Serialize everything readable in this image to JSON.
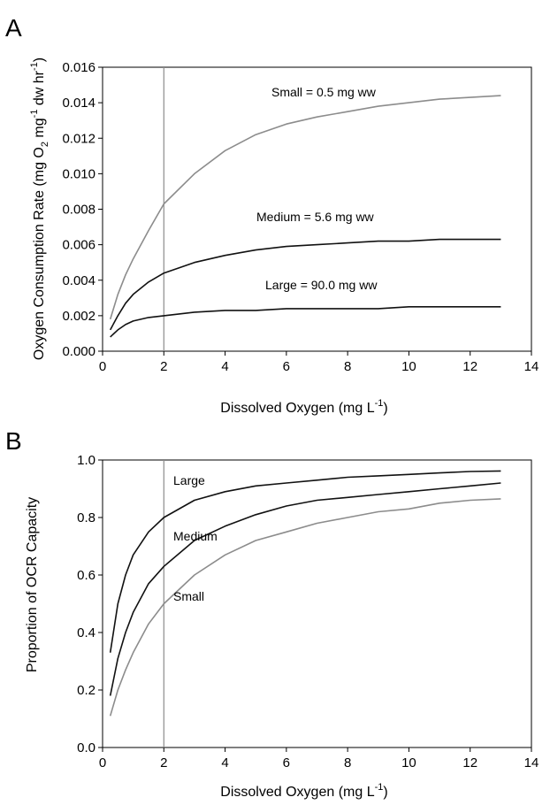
{
  "panels": [
    {
      "label": "A"
    },
    {
      "label": "B"
    }
  ],
  "chart_data": [
    {
      "type": "line",
      "panel": "A",
      "xlabel": "Dissolved Oxygen (mg L",
      "xlabel_sup": "-1",
      "xlabel_end": ")",
      "ylabel_parts": [
        "Oxygen Consumption Rate (mg O",
        "2",
        " mg",
        "-1",
        " dw hr",
        "-1",
        ")"
      ],
      "xlim": [
        0,
        14
      ],
      "ylim": [
        0,
        0.016
      ],
      "x_ticks": [
        0,
        2,
        4,
        6,
        8,
        10,
        12,
        14
      ],
      "y_ticks": [
        "0.000",
        "0.002",
        "0.004",
        "0.006",
        "0.008",
        "0.010",
        "0.012",
        "0.014",
        "0.016"
      ],
      "grid": false,
      "reference_line_x": 2,
      "series": [
        {
          "name": "Small = 0.5 mg ww",
          "color": "#8c8c8c",
          "x": [
            0.25,
            0.5,
            0.75,
            1,
            1.5,
            2,
            3,
            4,
            5,
            6,
            7,
            8,
            9,
            10,
            11,
            12,
            13
          ],
          "y": [
            0.0018,
            0.0032,
            0.0043,
            0.0052,
            0.0068,
            0.0083,
            0.01,
            0.0113,
            0.0122,
            0.0128,
            0.0132,
            0.0135,
            0.0138,
            0.014,
            0.0142,
            0.0143,
            0.0144
          ]
        },
        {
          "name": "Medium = 5.6 mg ww",
          "color": "#111111",
          "x": [
            0.25,
            0.5,
            0.75,
            1,
            1.5,
            2,
            3,
            4,
            5,
            6,
            7,
            8,
            9,
            10,
            11,
            12,
            13
          ],
          "y": [
            0.0012,
            0.002,
            0.0027,
            0.0032,
            0.0039,
            0.0044,
            0.005,
            0.0054,
            0.0057,
            0.0059,
            0.006,
            0.0061,
            0.0062,
            0.0062,
            0.0063,
            0.0063,
            0.0063
          ]
        },
        {
          "name": "Large = 90.0 mg ww",
          "color": "#111111",
          "x": [
            0.25,
            0.5,
            0.75,
            1,
            1.5,
            2,
            3,
            4,
            5,
            6,
            7,
            8,
            9,
            10,
            11,
            12,
            13
          ],
          "y": [
            0.0008,
            0.0012,
            0.0015,
            0.0017,
            0.0019,
            0.002,
            0.0022,
            0.0023,
            0.0023,
            0.0024,
            0.0024,
            0.0024,
            0.0024,
            0.0025,
            0.0025,
            0.0025,
            0.0025
          ]
        }
      ]
    },
    {
      "type": "line",
      "panel": "B",
      "xlabel": "Dissolved Oxygen (mg L",
      "xlabel_sup": "-1",
      "xlabel_end": ")",
      "ylabel": "Proportion of OCR Capacity",
      "xlim": [
        0,
        14
      ],
      "ylim": [
        0,
        1.0
      ],
      "x_ticks": [
        0,
        2,
        4,
        6,
        8,
        10,
        12,
        14
      ],
      "y_ticks": [
        "0.0",
        "0.2",
        "0.4",
        "0.6",
        "0.8",
        "1.0"
      ],
      "grid": false,
      "reference_line_x": 2,
      "series": [
        {
          "name": "Large",
          "color": "#111111",
          "x": [
            0.25,
            0.5,
            0.75,
            1,
            1.5,
            2,
            3,
            4,
            5,
            6,
            7,
            8,
            9,
            10,
            11,
            12,
            13
          ],
          "y": [
            0.33,
            0.5,
            0.6,
            0.67,
            0.75,
            0.8,
            0.86,
            0.89,
            0.91,
            0.92,
            0.93,
            0.94,
            0.945,
            0.95,
            0.955,
            0.96,
            0.962
          ]
        },
        {
          "name": "Medium",
          "color": "#111111",
          "x": [
            0.25,
            0.5,
            0.75,
            1,
            1.5,
            2,
            3,
            4,
            5,
            6,
            7,
            8,
            9,
            10,
            11,
            12,
            13
          ],
          "y": [
            0.18,
            0.31,
            0.4,
            0.47,
            0.57,
            0.63,
            0.72,
            0.77,
            0.81,
            0.84,
            0.86,
            0.87,
            0.88,
            0.89,
            0.9,
            0.91,
            0.92
          ]
        },
        {
          "name": "Small",
          "color": "#8c8c8c",
          "x": [
            0.25,
            0.5,
            0.75,
            1,
            1.5,
            2,
            3,
            4,
            5,
            6,
            7,
            8,
            9,
            10,
            11,
            12,
            13
          ],
          "y": [
            0.11,
            0.2,
            0.27,
            0.33,
            0.43,
            0.5,
            0.6,
            0.67,
            0.72,
            0.75,
            0.78,
            0.8,
            0.82,
            0.83,
            0.85,
            0.86,
            0.865
          ]
        }
      ]
    }
  ]
}
